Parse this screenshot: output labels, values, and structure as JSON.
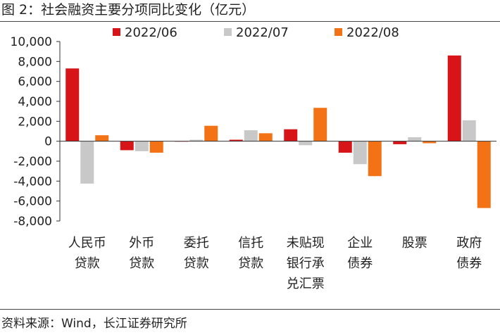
{
  "figure_title": "图 2：社会融资主要分项同比变化（亿元）",
  "source": "资料来源：Wind，长江证券研究所",
  "chart_data": {
    "type": "bar",
    "title": "",
    "xlabel": "",
    "ylabel": "",
    "ylim": [
      -8000,
      10000
    ],
    "yticks": [
      10000,
      8000,
      6000,
      4000,
      2000,
      0,
      -2000,
      -4000,
      -6000,
      -8000
    ],
    "ytick_labels": [
      "10,000",
      "8,000",
      "6,000",
      "4,000",
      "2,000",
      "0",
      "-2,000",
      "-4,000",
      "-6,000",
      "-8,000"
    ],
    "categories": [
      [
        "人民币",
        "贷款"
      ],
      [
        "外币",
        "贷款"
      ],
      [
        "委托",
        "贷款"
      ],
      [
        "信托",
        "贷款"
      ],
      [
        "未贴现",
        "银行承",
        "兑汇票"
      ],
      [
        "企业",
        "债券"
      ],
      [
        "股票"
      ],
      [
        "政府",
        "债券"
      ]
    ],
    "series": [
      {
        "name": "2022/06",
        "color": "#d71518",
        "values": [
          7300,
          -900,
          0,
          150,
          1200,
          -1150,
          -300,
          8600
        ]
      },
      {
        "name": "2022/07",
        "color": "#c8c8c8",
        "values": [
          -4250,
          -1000,
          150,
          1100,
          -400,
          -2300,
          400,
          2100
        ]
      },
      {
        "name": "2022/08",
        "color": "#f47216",
        "values": [
          600,
          -1150,
          1550,
          800,
          3350,
          -3500,
          -200,
          -6700
        ]
      }
    ],
    "legend_position": "top",
    "grid": false
  }
}
